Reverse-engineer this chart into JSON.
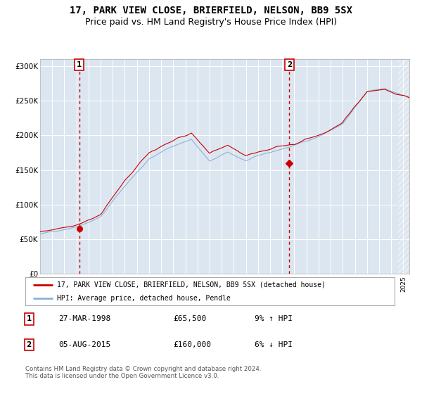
{
  "title": "17, PARK VIEW CLOSE, BRIERFIELD, NELSON, BB9 5SX",
  "subtitle": "Price paid vs. HM Land Registry's House Price Index (HPI)",
  "title_fontsize": 10,
  "subtitle_fontsize": 9,
  "background_color": "#ffffff",
  "plot_bg_color": "#dce6f1",
  "hpi_line_color": "#8ab4d8",
  "price_line_color": "#cc0000",
  "marker_color": "#cc0000",
  "dashed_line_color": "#cc0000",
  "ylim": [
    0,
    310000
  ],
  "xlim_start": 1995.0,
  "xlim_end": 2025.5,
  "ytick_labels": [
    "£0",
    "£50K",
    "£100K",
    "£150K",
    "£200K",
    "£250K",
    "£300K"
  ],
  "ytick_values": [
    0,
    50000,
    100000,
    150000,
    200000,
    250000,
    300000
  ],
  "sale1_date": 1998.23,
  "sale1_price": 65500,
  "sale2_date": 2015.59,
  "sale2_price": 160000,
  "legend_line1": "17, PARK VIEW CLOSE, BRIERFIELD, NELSON, BB9 5SX (detached house)",
  "legend_line2": "HPI: Average price, detached house, Pendle",
  "table_row1": [
    "1",
    "27-MAR-1998",
    "£65,500",
    "9% ↑ HPI"
  ],
  "table_row2": [
    "2",
    "05-AUG-2015",
    "£160,000",
    "6% ↓ HPI"
  ],
  "footer": "Contains HM Land Registry data © Crown copyright and database right 2024.\nThis data is licensed under the Open Government Licence v3.0.",
  "hatching_start": 2024.5,
  "grid_color": "#ffffff"
}
